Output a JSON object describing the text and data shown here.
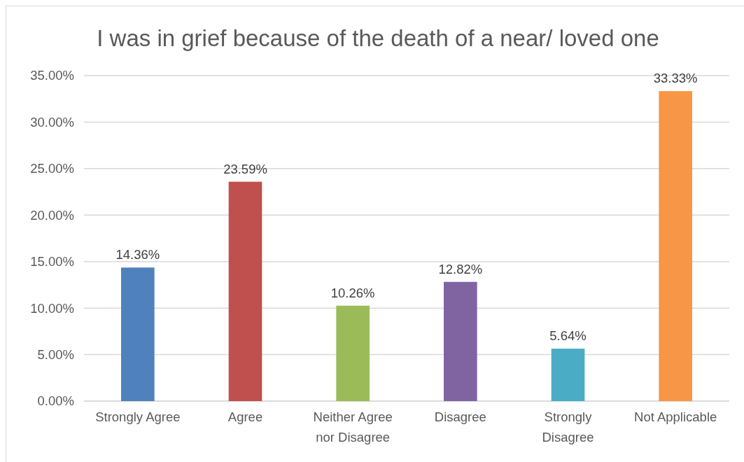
{
  "chart_data": {
    "type": "bar",
    "title": "I was in grief because of the death of a near/ loved one",
    "categories": [
      "Strongly Agree",
      "Agree",
      "Neither Agree nor Disagree",
      "Disagree",
      "Strongly Disagree",
      "Not Applicable"
    ],
    "values": [
      14.36,
      23.59,
      10.26,
      12.82,
      5.64,
      33.33
    ],
    "colors": [
      "#4f81bd",
      "#c0504d",
      "#9bbb59",
      "#8064a2",
      "#4bacc6",
      "#f79646"
    ],
    "value_labels": [
      "14.36%",
      "23.59%",
      "10.26%",
      "12.82%",
      "5.64%",
      "33.33%"
    ],
    "ylim": [
      0,
      35
    ],
    "yticks": [
      {
        "value": 0,
        "label": "0.00%"
      },
      {
        "value": 5,
        "label": "5.00%"
      },
      {
        "value": 10,
        "label": "10.00%"
      },
      {
        "value": 15,
        "label": "15.00%"
      },
      {
        "value": 20,
        "label": "20.00%"
      },
      {
        "value": 25,
        "label": "25.00%"
      },
      {
        "value": 30,
        "label": "30.00%"
      },
      {
        "value": 35,
        "label": "35.00%"
      }
    ],
    "grid": "y",
    "legend": false
  }
}
